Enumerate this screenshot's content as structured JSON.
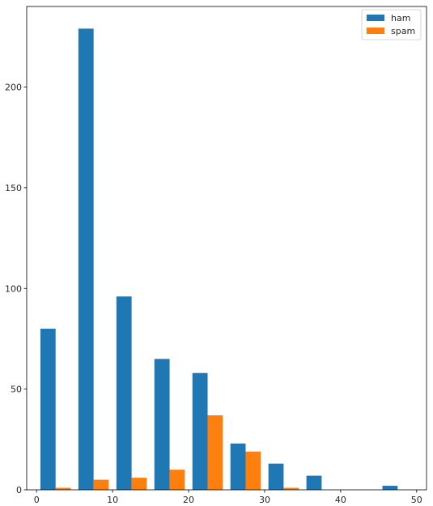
{
  "chart_data": {
    "type": "bar",
    "title": "",
    "xlabel": "",
    "ylabel": "",
    "bin_width": 5,
    "bin_starts": [
      0,
      5,
      10,
      15,
      20,
      25,
      30,
      35,
      40,
      45
    ],
    "xlim": [
      -1.3,
      51.3
    ],
    "ylim": [
      0,
      240
    ],
    "xticks": [
      0,
      10,
      20,
      30,
      40,
      50
    ],
    "yticks": [
      0,
      50,
      100,
      150,
      200
    ],
    "series": [
      {
        "name": "ham",
        "color": "#1f77b4",
        "values": [
          80,
          229,
          96,
          65,
          58,
          23,
          13,
          7,
          0,
          2
        ]
      },
      {
        "name": "spam",
        "color": "#ff7f0e",
        "values": [
          1,
          5,
          6,
          10,
          37,
          19,
          1,
          0,
          0,
          0
        ]
      }
    ],
    "legend": {
      "placement": "top-right"
    },
    "grid": false
  }
}
